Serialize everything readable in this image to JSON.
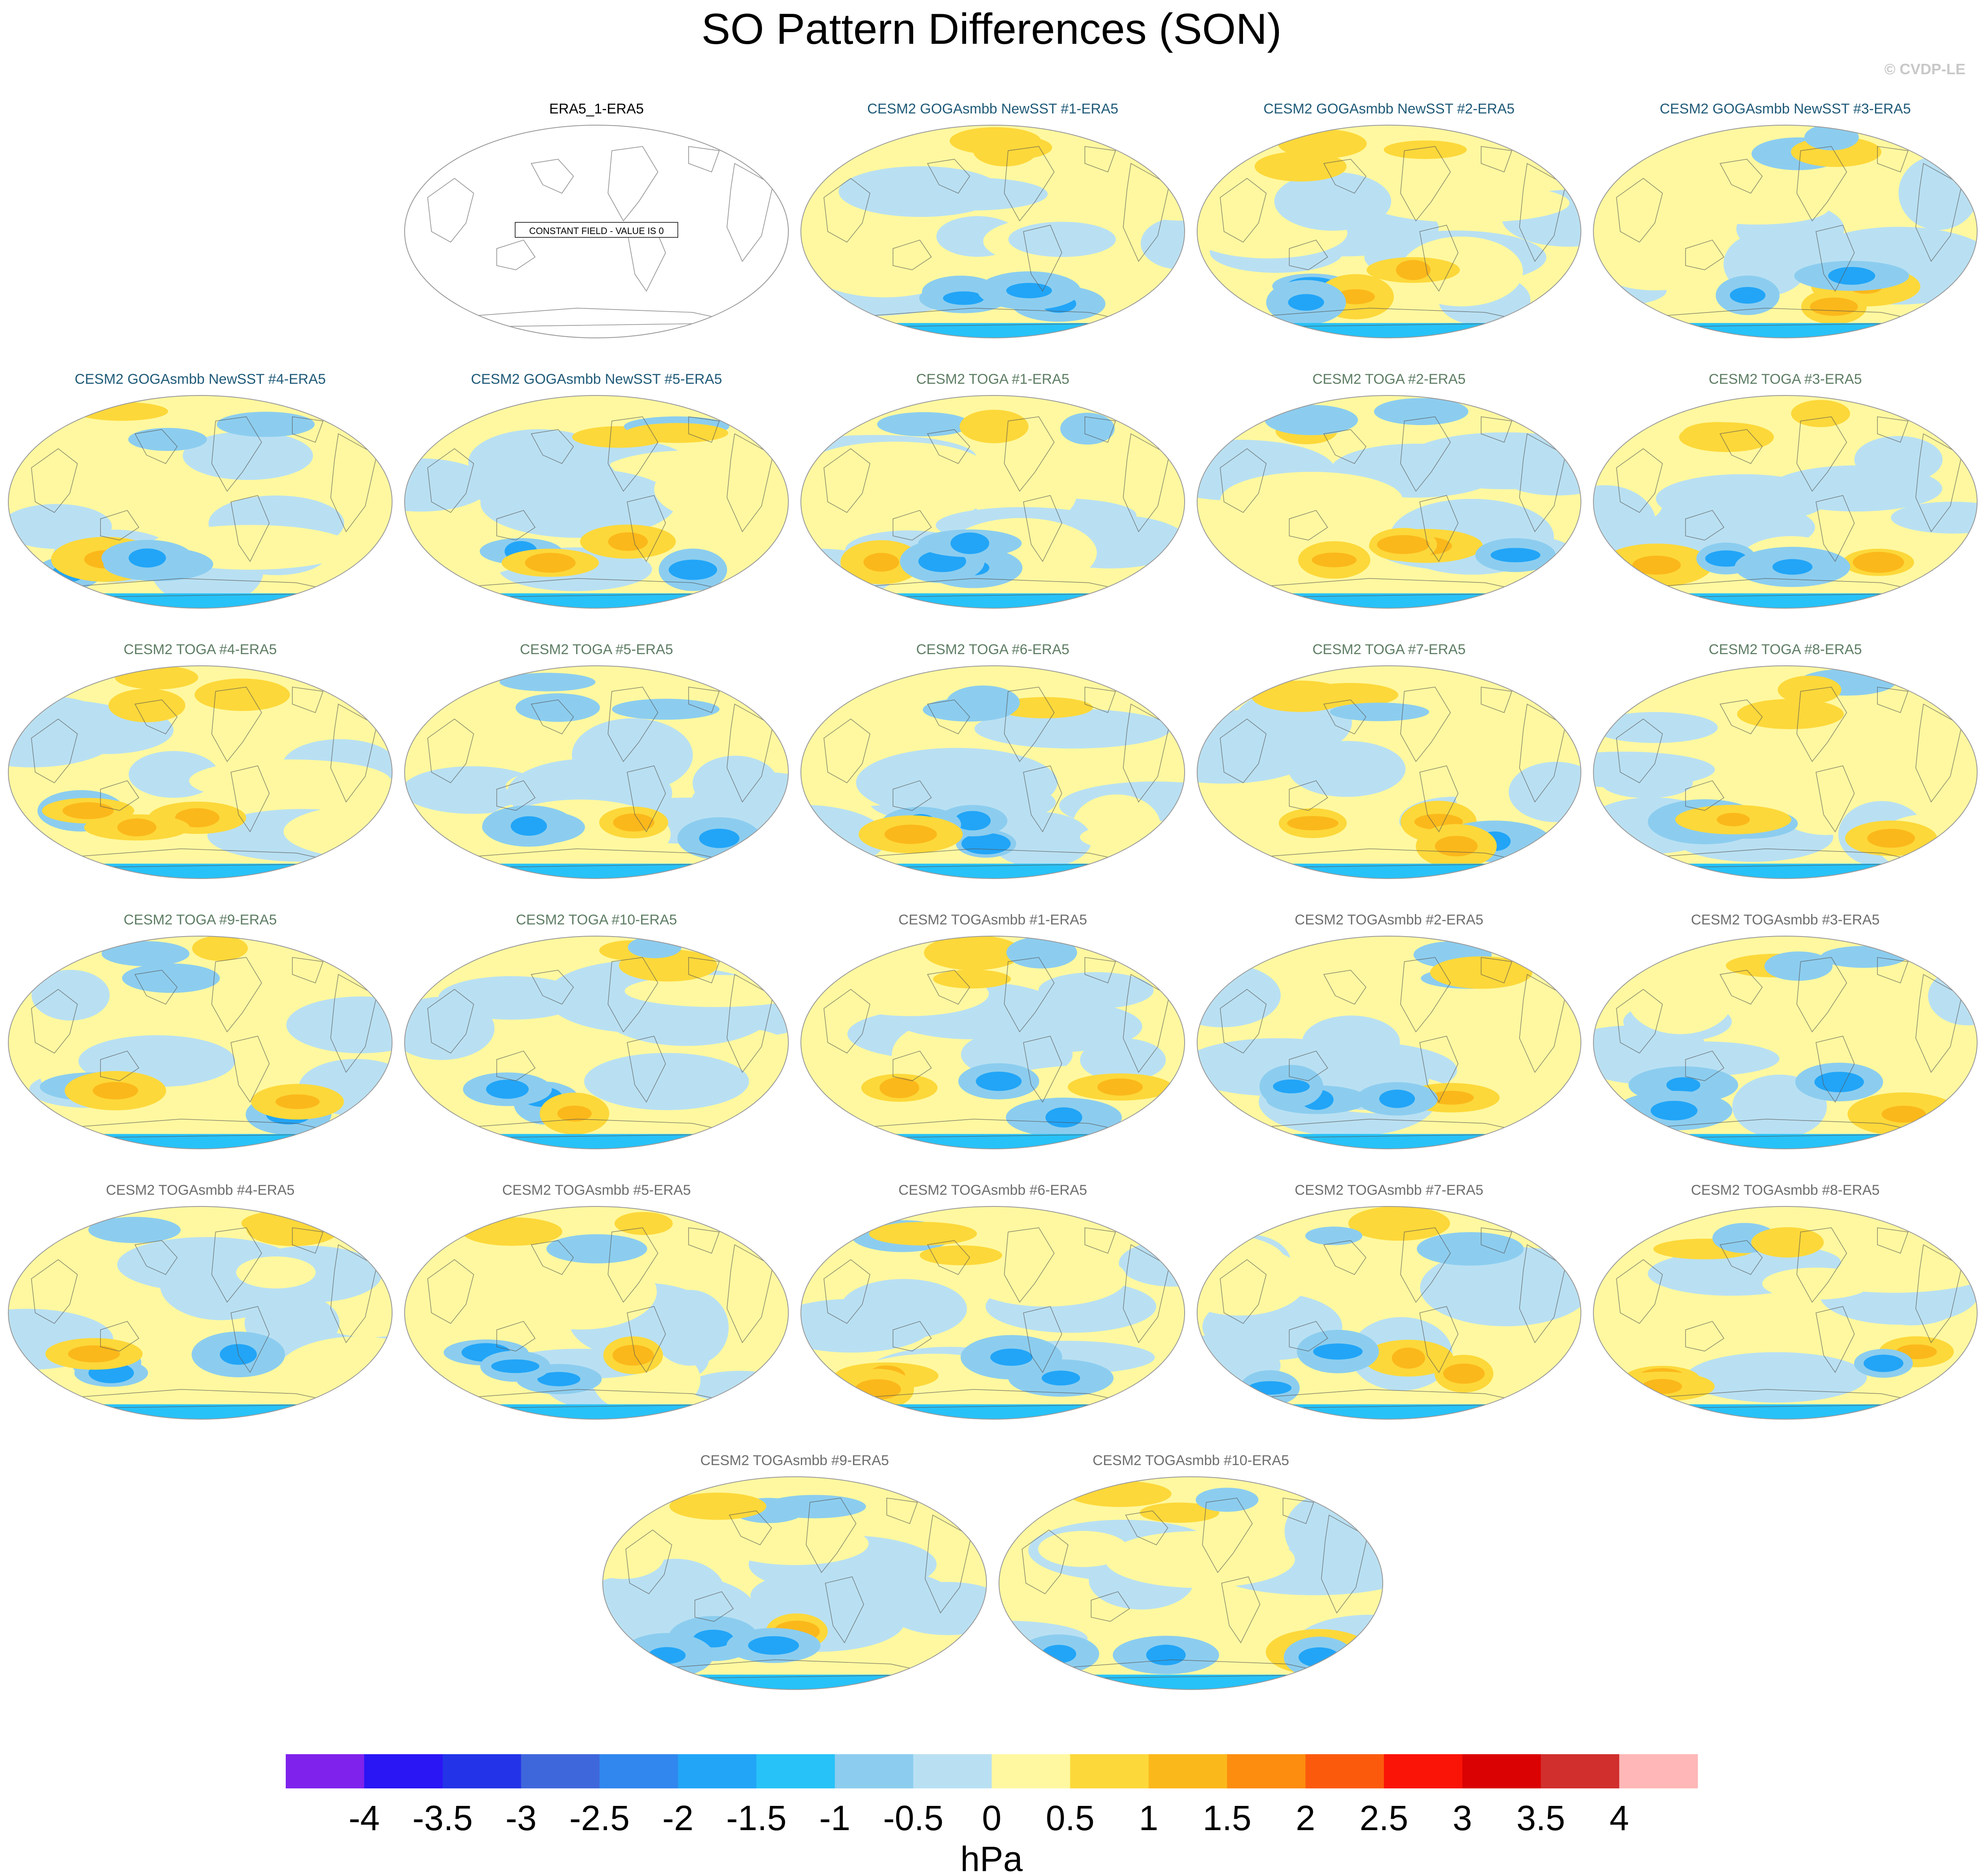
{
  "title": "SO Pattern Differences (SON)",
  "watermark": "© CVDP-LE",
  "constant_field_label": "CONSTANT FIELD - VALUE IS 0",
  "units": "hPa",
  "colorbar": {
    "colors": [
      "#7f22ec",
      "#2a15f5",
      "#2334e8",
      "#3f67dc",
      "#3187ee",
      "#22a5f7",
      "#27c2f8",
      "#8ccdef",
      "#b9e0f2",
      "#fff8a0",
      "#fdd83a",
      "#fbb81b",
      "#fc8d0e",
      "#fb5a0d",
      "#fa1307",
      "#da0202",
      "#d12e2e",
      "#ffb7b7"
    ],
    "ticks": [
      "-4",
      "-3.5",
      "-3",
      "-2.5",
      "-2",
      "-1.5",
      "-1",
      "-0.5",
      "0",
      "0.5",
      "1",
      "1.5",
      "2",
      "2.5",
      "3",
      "3.5",
      "4"
    ]
  },
  "panels": [
    {
      "title": "ERA5_1-ERA5",
      "title_color": "#000000",
      "constant": true
    },
    {
      "title": "CESM2 GOGAsmbb NewSST #1-ERA5",
      "title_color": "#1f5a78"
    },
    {
      "title": "CESM2 GOGAsmbb NewSST #2-ERA5",
      "title_color": "#1f5a78"
    },
    {
      "title": "CESM2 GOGAsmbb NewSST #3-ERA5",
      "title_color": "#1f5a78"
    },
    {
      "title": "CESM2 GOGAsmbb NewSST #4-ERA5",
      "title_color": "#1f5a78"
    },
    {
      "title": "CESM2 GOGAsmbb NewSST #5-ERA5",
      "title_color": "#1f5a78"
    },
    {
      "title": "CESM2 TOGA #1-ERA5",
      "title_color": "#5e7d64"
    },
    {
      "title": "CESM2 TOGA #2-ERA5",
      "title_color": "#5e7d64"
    },
    {
      "title": "CESM2 TOGA #3-ERA5",
      "title_color": "#5e7d64"
    },
    {
      "title": "CESM2 TOGA #4-ERA5",
      "title_color": "#5e7d64"
    },
    {
      "title": "CESM2 TOGA #5-ERA5",
      "title_color": "#5e7d64"
    },
    {
      "title": "CESM2 TOGA #6-ERA5",
      "title_color": "#5e7d64"
    },
    {
      "title": "CESM2 TOGA #7-ERA5",
      "title_color": "#5e7d64"
    },
    {
      "title": "CESM2 TOGA #8-ERA5",
      "title_color": "#5e7d64"
    },
    {
      "title": "CESM2 TOGA #9-ERA5",
      "title_color": "#5e7d64"
    },
    {
      "title": "CESM2 TOGA #10-ERA5",
      "title_color": "#5e7d64"
    },
    {
      "title": "CESM2 TOGAsmbb #1-ERA5",
      "title_color": "#6e6e6e"
    },
    {
      "title": "CESM2 TOGAsmbb #2-ERA5",
      "title_color": "#6e6e6e"
    },
    {
      "title": "CESM2 TOGAsmbb #3-ERA5",
      "title_color": "#6e6e6e"
    },
    {
      "title": "CESM2 TOGAsmbb #4-ERA5",
      "title_color": "#6e6e6e"
    },
    {
      "title": "CESM2 TOGAsmbb #5-ERA5",
      "title_color": "#6e6e6e"
    },
    {
      "title": "CESM2 TOGAsmbb #6-ERA5",
      "title_color": "#6e6e6e"
    },
    {
      "title": "CESM2 TOGAsmbb #7-ERA5",
      "title_color": "#6e6e6e"
    },
    {
      "title": "CESM2 TOGAsmbb #8-ERA5",
      "title_color": "#6e6e6e"
    },
    {
      "title": "CESM2 TOGAsmbb #9-ERA5",
      "title_color": "#6e6e6e"
    },
    {
      "title": "CESM2 TOGAsmbb #10-ERA5",
      "title_color": "#6e6e6e"
    }
  ]
}
